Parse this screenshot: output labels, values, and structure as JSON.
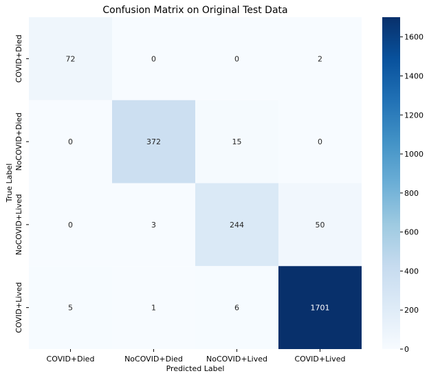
{
  "chart_data": {
    "type": "heatmap",
    "title": "Confusion Matrix on Original Test Data",
    "xlabel": "Predicted Label",
    "ylabel": "True Label",
    "x_categories": [
      "COVID+Died",
      "NoCOVID+Died",
      "NoCOVID+Lived",
      "COVID+Lived"
    ],
    "y_categories": [
      "COVID+Died",
      "NoCOVID+Died",
      "NoCOVID+Lived",
      "COVID+Lived"
    ],
    "values": [
      [
        72,
        0,
        0,
        2
      ],
      [
        0,
        372,
        15,
        0
      ],
      [
        0,
        3,
        244,
        50
      ],
      [
        5,
        1,
        6,
        1701
      ]
    ],
    "colorbar": {
      "min": 0,
      "max": 1701,
      "ticks": [
        0,
        200,
        400,
        600,
        800,
        1000,
        1200,
        1400,
        1600
      ]
    },
    "colormap": "Blues",
    "colors": {
      "low": "#f7fbff",
      "high": "#08306b",
      "text_dark": "#262626",
      "text_light": "#ffffff"
    }
  }
}
